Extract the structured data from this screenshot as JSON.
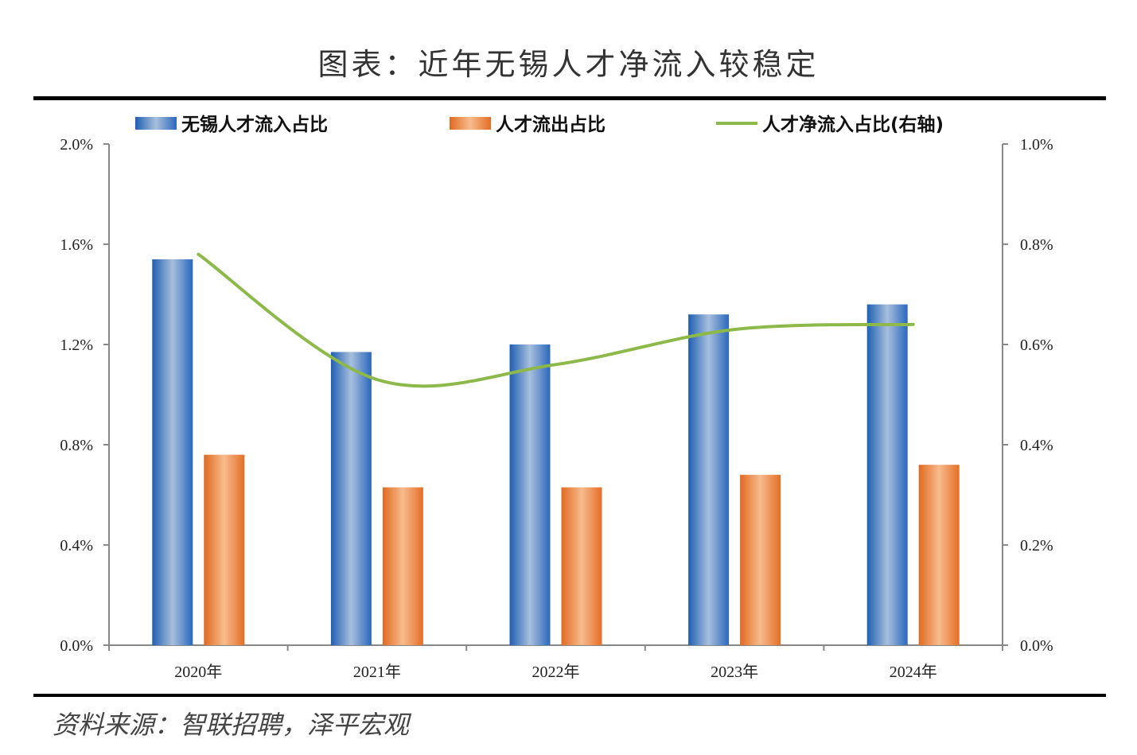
{
  "title": "图表：近年无锡人才净流入较稳定",
  "source": "资料来源：智联招聘，泽平宏观",
  "chart_data": {
    "type": "bar",
    "categories": [
      "2020年",
      "2021年",
      "2022年",
      "2023年",
      "2024年"
    ],
    "series": [
      {
        "name": "无锡人才流入占比",
        "type": "bar",
        "axis": "left",
        "color": "#2e6fbf",
        "values": [
          1.54,
          1.17,
          1.2,
          1.32,
          1.36
        ]
      },
      {
        "name": "人才流出占比",
        "type": "bar",
        "axis": "left",
        "color": "#e8732a",
        "values": [
          0.76,
          0.63,
          0.63,
          0.68,
          0.72
        ]
      },
      {
        "name": "人才净流入占比(右轴)",
        "type": "line",
        "axis": "right",
        "color": "#8db84a",
        "values": [
          0.78,
          0.53,
          0.56,
          0.63,
          0.64
        ]
      }
    ],
    "left_axis": {
      "ticks": [
        "0.0%",
        "0.4%",
        "0.8%",
        "1.2%",
        "1.6%",
        "2.0%"
      ],
      "min": 0,
      "max": 2.0
    },
    "right_axis": {
      "ticks": [
        "0.0%",
        "0.2%",
        "0.4%",
        "0.6%",
        "0.8%",
        "1.0%"
      ],
      "min": 0,
      "max": 1.0
    },
    "legend_position": "top",
    "grid": false
  }
}
